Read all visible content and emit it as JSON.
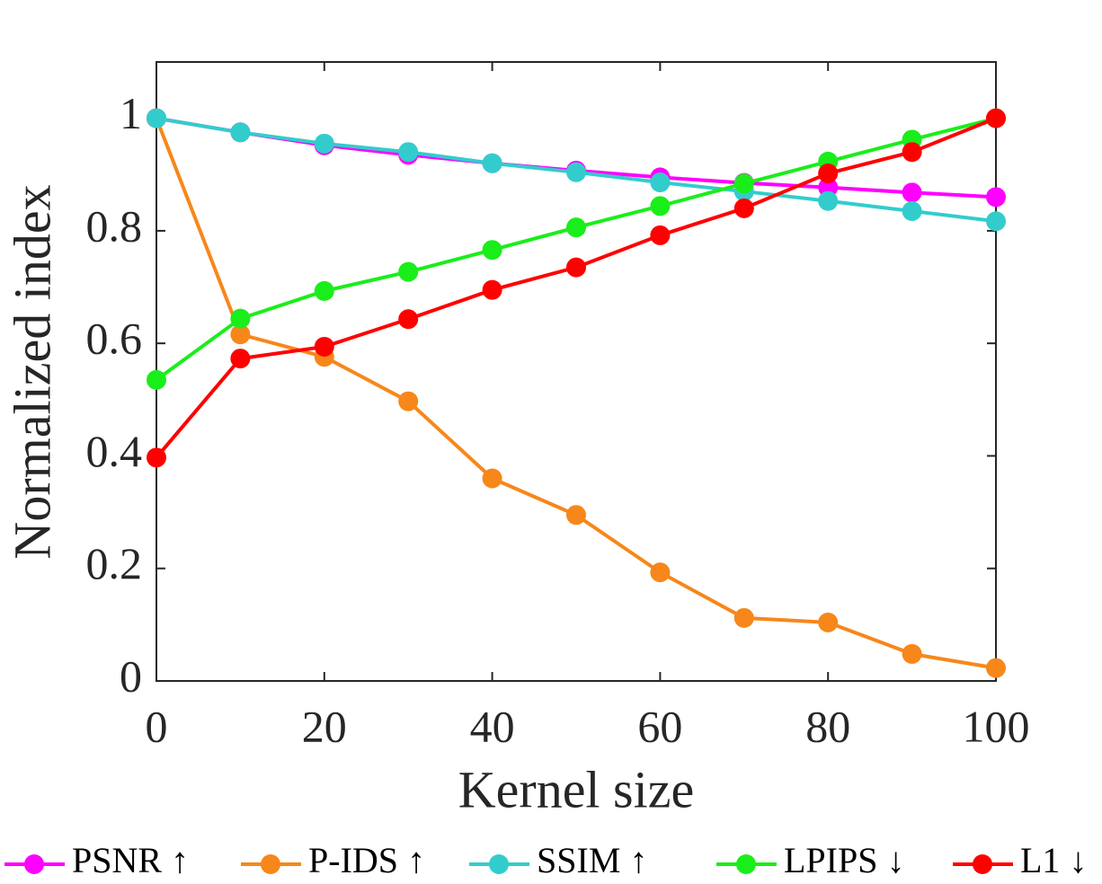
{
  "chart_data": {
    "type": "line",
    "x_label": "Kernel size",
    "y_label": "Normalized index",
    "x": [
      0,
      10,
      20,
      30,
      40,
      50,
      60,
      70,
      80,
      90,
      100
    ],
    "series": [
      {
        "name": "PSNR ↑",
        "color": "#ff00ff",
        "values": [
          1,
          0.975,
          0.952,
          0.935,
          0.92,
          0.907,
          0.895,
          0.885,
          0.877,
          0.868,
          0.86
        ]
      },
      {
        "name": "P-IDS ↑",
        "color": "#f7871a",
        "values": [
          1,
          0.616,
          0.576,
          0.497,
          0.36,
          0.295,
          0.193,
          0.112,
          0.104,
          0.048,
          0.023
        ]
      },
      {
        "name": "SSIM ↑",
        "color": "#33cccc",
        "values": [
          1,
          0.975,
          0.955,
          0.94,
          0.92,
          0.904,
          0.886,
          0.87,
          0.853,
          0.835,
          0.817
        ]
      },
      {
        "name": "LPIPS ↓",
        "color": "#1aee1a",
        "values": [
          0.535,
          0.644,
          0.693,
          0.727,
          0.766,
          0.806,
          0.844,
          0.884,
          0.923,
          0.962,
          1
        ]
      },
      {
        "name": "L1 ↓",
        "color": "#ff0000",
        "values": [
          0.397,
          0.573,
          0.594,
          0.643,
          0.695,
          0.735,
          0.792,
          0.84,
          0.902,
          0.94,
          1
        ]
      }
    ],
    "xlim": [
      0,
      100
    ],
    "xticks": [
      0,
      20,
      40,
      60,
      80,
      100
    ],
    "ylim": [
      0,
      1.1
    ],
    "yticks": [
      0,
      0.2,
      0.4,
      0.6,
      0.8,
      1
    ],
    "grid": false,
    "legend": "bottom"
  }
}
